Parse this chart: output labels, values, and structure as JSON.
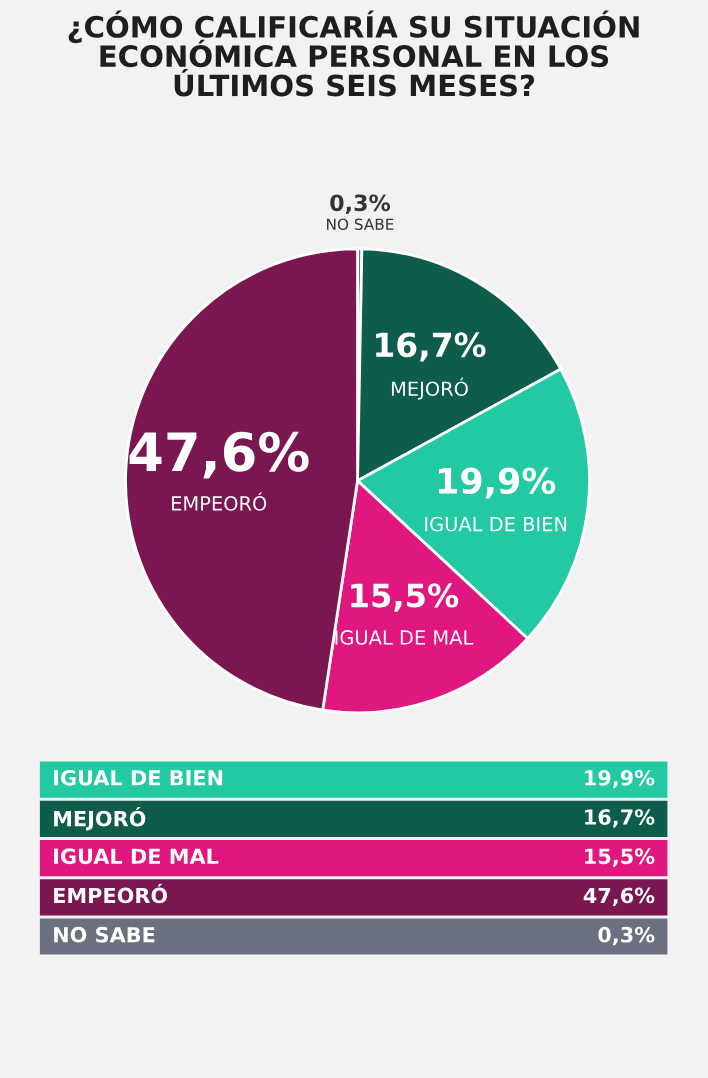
{
  "chart_data": [
    {
      "type": "pie",
      "title": "¿CÓMO CALIFICARÍA SU SITUACIÓN\nECONÓMICA PERSONAL EN LOS\nÚLTIMOS SEIS MESES?",
      "categories": [
        "NO SABE",
        "MEJORÓ",
        "IGUAL DE BIEN",
        "IGUAL DE MAL",
        "EMPEORÓ"
      ],
      "values": [
        0.3,
        16.7,
        19.9,
        15.5,
        47.6
      ],
      "value_labels": [
        "0,3%",
        "16,7%",
        "19,9%",
        "15,5%",
        "47,6%"
      ],
      "colors": [
        "#6b7080",
        "#0d5c4c",
        "#22c9a2",
        "#e0177e",
        "#7b1750"
      ]
    },
    {
      "type": "other",
      "categories": [
        "IGUAL DE BIEN",
        "MEJORÓ",
        "IGUAL DE MAL",
        "EMPEORÓ",
        "NO SABE"
      ],
      "value_labels": [
        "19,9%",
        "16,7%",
        "15,5%",
        "47,6%",
        "0,3%"
      ],
      "colors": [
        "#22c9a2",
        "#0d5c4c",
        "#e0177e",
        "#7b1750",
        "#6b7080"
      ]
    }
  ]
}
